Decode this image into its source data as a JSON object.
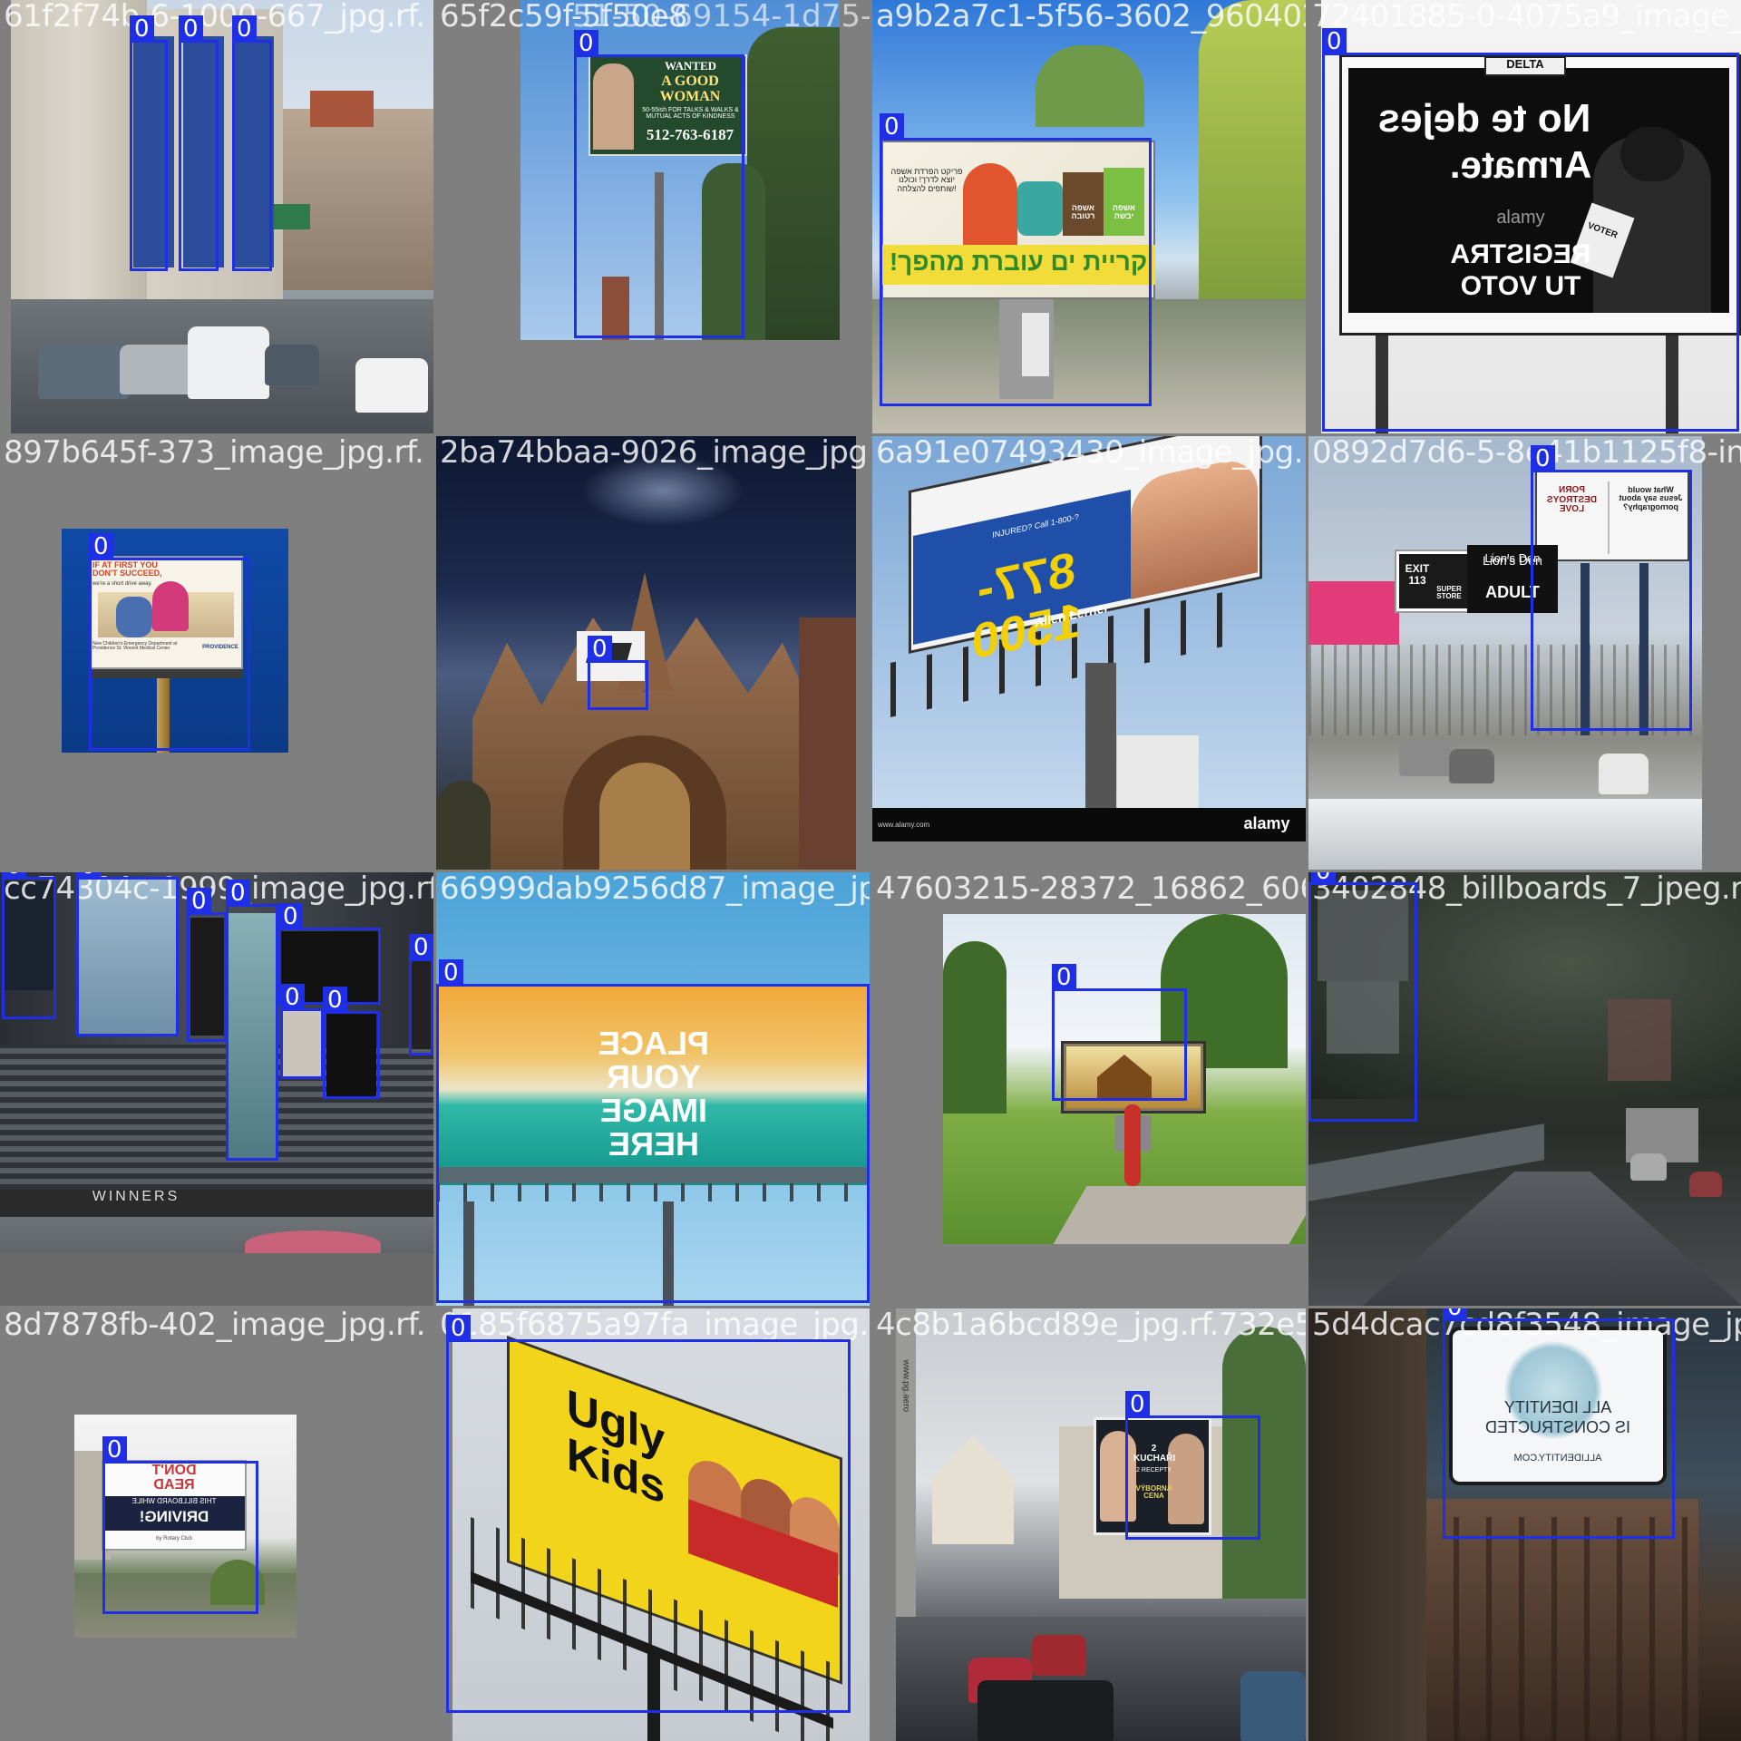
{
  "grid": {
    "rows": 4,
    "cols": 4,
    "tile_background": "#7f7f7f",
    "box_color": "#1f2fe6",
    "box_label": "0"
  },
  "tiles": [
    {
      "id": 1,
      "caption": "61f2f74b-6-1000-667_jpg.rf.",
      "box_count": 3
    },
    {
      "id": 2,
      "caption": "65f2c59f-5f50e8",
      "caption_overlap": "51-50-69154-1d75-4",
      "box_count": 1,
      "billboard": {
        "line1": "WANTED",
        "line2": "A GOOD WOMAN",
        "line3": "50-55ish FOR TALKS & WALKS & MUTUAL ACTS OF KINDNESS",
        "phone": "512-763-6187"
      }
    },
    {
      "id": 3,
      "caption": "a9b2a7c1-5f56-3602_9604027",
      "box_count": 2,
      "billboard": {
        "headline": "!קריית ים עוברת מהפך",
        "text_left": "פריקט הפרדת אשפה יוצא לדרך! וכולנו שותפים להצלחה!",
        "bin1": "אשפה רטובה",
        "bin2": "אשפה יבשה"
      }
    },
    {
      "id": 4,
      "caption": "72401885-0-4075a9_image_jpg.",
      "box_count": 1,
      "billboard": {
        "line1": "No te dejes",
        "line2": "Armate.",
        "line3": "REGISTRA",
        "line4": "TU VOTO",
        "top_sign": "DELTA",
        "badge": "VOTER",
        "watermark": "alamy"
      }
    },
    {
      "id": 5,
      "caption": "897b645f-373_image_jpg.rf.",
      "box_count": 1,
      "billboard": {
        "headline": "IF AT FIRST YOU DON'T SUCCEED,",
        "sub": "we're a short drive away.",
        "footer": "New Children's Emergency Department at Providence St. Vincent Medical Center",
        "brand": "PROVIDENCE"
      }
    },
    {
      "id": 6,
      "caption": "2ba74bbaa-9026_image_jpg.rf.",
      "box_count": 1
    },
    {
      "id": 7,
      "caption": "6a91e07493430_image_jpg.rf.",
      "box_count": 0,
      "billboard": {
        "number": "877-1500",
        "name": "Allen Lerner",
        "sub": "INJURED? Call 1-800-?",
        "watermark": "alamy",
        "footer": "www.alamy.com"
      }
    },
    {
      "id": 8,
      "caption": "0892d7d6-5-8e41b1125f8-in",
      "box_count": 1,
      "billboard": {
        "left_text": "PORN DESTROYS LOVE",
        "right_text": "What would Jesus say about pornography?",
        "sign2_a": "Lion's Den",
        "sign2_b": "ADULT",
        "sign2_c": "SUPER STORE",
        "exit": "EXIT 113"
      }
    },
    {
      "id": 9,
      "caption": "cc74304c-1999_image_jpg.rf.",
      "box_count": 8,
      "facade_text": "WINNERS"
    },
    {
      "id": 10,
      "caption": "66999dab9256d87_image_jpg.rf.",
      "box_count": 1,
      "billboard": {
        "text": [
          "PLACE",
          "YOUR",
          "IMAGE",
          "HERE"
        ]
      }
    },
    {
      "id": 11,
      "caption": "47603215-28372_16862_6063",
      "box_count": 1
    },
    {
      "id": 12,
      "caption": "3402848_billboards_7_jpeg.rf.",
      "box_count": 1
    },
    {
      "id": 13,
      "caption": "8d7878fb-402_image_jpg.rf.",
      "box_count": 1,
      "billboard": {
        "line1": "DON'T",
        "line2": "READ",
        "line3": "THIS BILLBOARD WHILE",
        "line4": "DRIVING!",
        "footer": "by Rotary Club"
      }
    },
    {
      "id": 14,
      "caption": "0185f6875a97fa_image_jpg.rf.",
      "box_count": 1,
      "billboard": {
        "text": "Ugly Kids"
      }
    },
    {
      "id": 15,
      "caption": "4c8b1a6bcd89e_jpg.rf.732e523",
      "box_count": 1,
      "billboard": {
        "line1": "2 KUCHAŘI",
        "line2": "2 RECEPTY",
        "line3": "VÝBORNÁ CENA"
      },
      "side_text": "www.pg.aero"
    },
    {
      "id": 16,
      "caption": "5d4dcac7cd8f3548_image_jpg.rf",
      "box_count": 1,
      "billboard": {
        "line1": "ALL IDENTITY",
        "line2": "IS CONSTRUCTED",
        "url": "ALLIDENTITY.COM"
      }
    }
  ]
}
